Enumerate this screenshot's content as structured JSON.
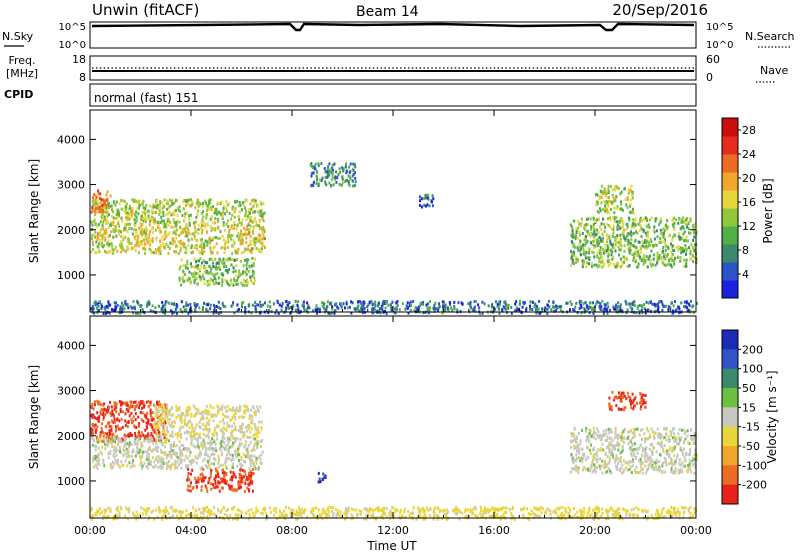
{
  "header": {
    "station": "Unwin (fitACF)",
    "beam": "Beam 14",
    "date": "20/Sep/2016"
  },
  "top_strips": {
    "nsky": {
      "label": "N.Sky",
      "ticks": [
        "10^5",
        "10^0"
      ]
    },
    "nsearch": {
      "label": "N.Search",
      "ticks": [
        "10^5",
        "10^0"
      ]
    },
    "freq": {
      "label_top": "Freq.",
      "label_bottom": "[MHz]",
      "ticks": [
        "18",
        "8"
      ]
    },
    "nave": {
      "label": "Nave",
      "ticks": [
        "60",
        "0"
      ]
    },
    "cpid": {
      "label": "CPID",
      "value": "normal (fast) 151"
    }
  },
  "chart_data": [
    {
      "type": "heatmap",
      "panel": "power",
      "title": "",
      "xlabel": "Time UT",
      "ylabel": "Slant Range [km]",
      "xlim": [
        "00:00",
        "24:00"
      ],
      "ylim": [
        180,
        4650
      ],
      "x_ticks": [
        "00:00",
        "04:00",
        "08:00",
        "12:00",
        "16:00",
        "20:00",
        "00:00"
      ],
      "y_ticks": [
        1000,
        2000,
        3000,
        4000
      ],
      "colorbar": {
        "label": "Power [dB]",
        "ticks": [
          4,
          8,
          12,
          16,
          20,
          24,
          28
        ],
        "range": [
          0,
          30
        ],
        "colors": [
          "#1a22e0",
          "#2a54c8",
          "#3a8a6e",
          "#52b048",
          "#90c83a",
          "#e8d63a",
          "#f3a62c",
          "#ee6b22",
          "#e62c1c",
          "#cc0c0c"
        ]
      },
      "echo_regions": [
        {
          "t_start": 0.0,
          "t_end": 6.9,
          "r_start": 1500,
          "r_end": 2100,
          "power_dB": 16
        },
        {
          "t_start": 0.0,
          "t_end": 6.9,
          "r_start": 2100,
          "r_end": 2700,
          "power_dB": 14
        },
        {
          "t_start": 0.0,
          "t_end": 0.8,
          "r_start": 2400,
          "r_end": 2900,
          "power_dB": 22
        },
        {
          "t_start": 3.5,
          "t_end": 6.5,
          "r_start": 800,
          "r_end": 1400,
          "power_dB": 12
        },
        {
          "t_start": 8.7,
          "t_end": 10.5,
          "r_start": 3000,
          "r_end": 3500,
          "power_dB": 8
        },
        {
          "t_start": 13.0,
          "t_end": 13.6,
          "r_start": 2500,
          "r_end": 2800,
          "power_dB": 6
        },
        {
          "t_start": 19.0,
          "t_end": 24.0,
          "r_start": 1200,
          "r_end": 2300,
          "power_dB": 12
        },
        {
          "t_start": 20.0,
          "t_end": 21.5,
          "r_start": 2400,
          "r_end": 3000,
          "power_dB": 14
        },
        {
          "t_start": 0.0,
          "t_end": 24.0,
          "r_start": 180,
          "r_end": 450,
          "power_dB": 6
        }
      ]
    },
    {
      "type": "heatmap",
      "panel": "velocity",
      "title": "",
      "xlabel": "Time UT",
      "ylabel": "Slant Range [km]",
      "xlim": [
        "00:00",
        "24:00"
      ],
      "ylim": [
        180,
        4650
      ],
      "x_ticks": [
        "00:00",
        "04:00",
        "08:00",
        "12:00",
        "16:00",
        "20:00",
        "00:00"
      ],
      "y_ticks": [
        1000,
        2000,
        3000,
        4000
      ],
      "colorbar": {
        "label": "Velocity [m s⁻¹]",
        "ticks": [
          "200",
          "100",
          "50",
          "15",
          "-15",
          "-50",
          "-100",
          "-200"
        ],
        "colors": [
          "#1c2ab8",
          "#3054c8",
          "#3a8a6e",
          "#6cc040",
          "#c8c8c0",
          "#e8d63a",
          "#f3a62c",
          "#ee6b22",
          "#e8231c"
        ]
      },
      "echo_regions": [
        {
          "t_start": 0.0,
          "t_end": 3.0,
          "r_start": 1900,
          "r_end": 2800,
          "velocity": -200
        },
        {
          "t_start": 0.0,
          "t_end": 6.8,
          "r_start": 1300,
          "r_end": 2000,
          "velocity": 0
        },
        {
          "t_start": 2.5,
          "t_end": 6.8,
          "r_start": 2000,
          "r_end": 2700,
          "velocity": -15
        },
        {
          "t_start": 3.8,
          "t_end": 6.5,
          "r_start": 800,
          "r_end": 1300,
          "velocity": -200
        },
        {
          "t_start": 9.0,
          "t_end": 9.3,
          "r_start": 1000,
          "r_end": 1300,
          "velocity": 200
        },
        {
          "t_start": 19.0,
          "t_end": 24.0,
          "r_start": 1200,
          "r_end": 2200,
          "velocity": 0
        },
        {
          "t_start": 20.5,
          "t_end": 22.0,
          "r_start": 2600,
          "r_end": 3000,
          "velocity": -200
        },
        {
          "t_start": 0.0,
          "t_end": 24.0,
          "r_start": 180,
          "r_end": 450,
          "velocity": -30
        }
      ]
    }
  ]
}
